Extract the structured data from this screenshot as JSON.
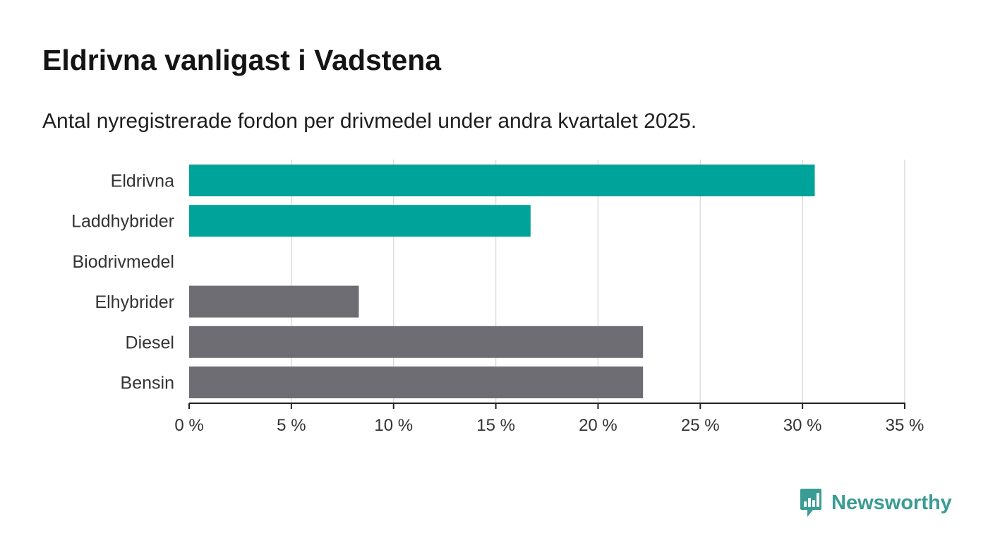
{
  "title": "Eldrivna vanligast i Vadstena",
  "subtitle": "Antal nyregistrerade fordon per drivmedel under andra kvartalet 2025.",
  "brand": {
    "name": "Newsworthy",
    "logo_icon": "newsworthy-chart-bubble-icon",
    "color": "#3a9c93"
  },
  "chart_data": {
    "type": "bar",
    "orientation": "horizontal",
    "categories": [
      "Eldrivna",
      "Laddhybrider",
      "Biodrivmedel",
      "Elhybrider",
      "Diesel",
      "Bensin"
    ],
    "values": [
      30.6,
      16.7,
      0,
      8.3,
      22.2,
      22.2
    ],
    "bar_colors": [
      "#00a39a",
      "#00a39a",
      "#6e6d74",
      "#6e6d74",
      "#6e6d74",
      "#6e6d74"
    ],
    "xlim": [
      0,
      35
    ],
    "xticks": [
      0,
      5,
      10,
      15,
      20,
      25,
      30,
      35
    ],
    "tick_labels": [
      "0 %",
      "5 %",
      "10 %",
      "15 %",
      "20 %",
      "25 %",
      "30 %",
      "35 %"
    ],
    "grid": true
  }
}
